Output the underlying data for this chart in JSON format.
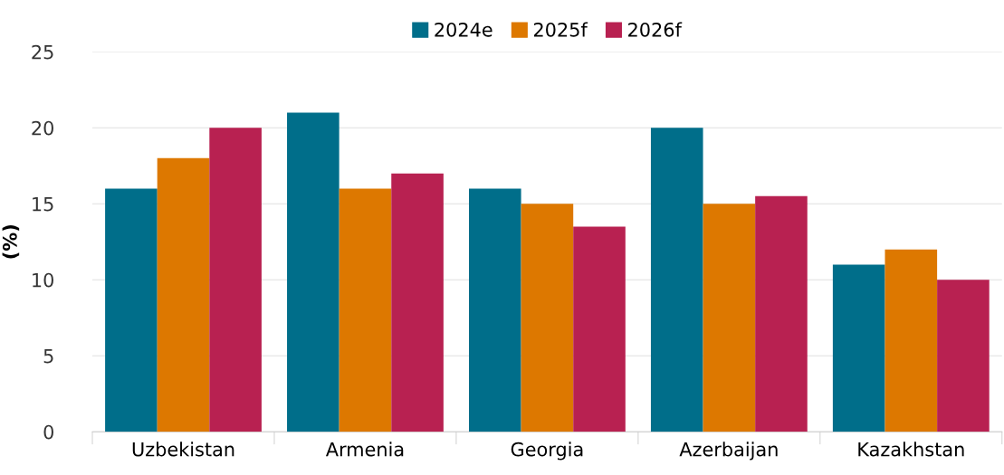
{
  "chart_data": {
    "type": "bar",
    "ylabel": "(%)",
    "categories": [
      "Uzbekistan",
      "Armenia",
      "Georgia",
      "Azerbaijan",
      "Kazakhstan"
    ],
    "series": [
      {
        "name": "2024e",
        "color": "#006e8a",
        "values": [
          16,
          21,
          16,
          20,
          11
        ]
      },
      {
        "name": "2025f",
        "color": "#dd7800",
        "values": [
          18,
          16,
          15,
          15,
          12
        ]
      },
      {
        "name": "2026f",
        "color": "#b82151",
        "values": [
          20,
          17,
          13.5,
          15.5,
          10
        ]
      }
    ],
    "ylim": [
      0,
      25
    ],
    "yticks": [
      0,
      5,
      10,
      15,
      20,
      25
    ],
    "grid": "y",
    "legend": "top"
  }
}
